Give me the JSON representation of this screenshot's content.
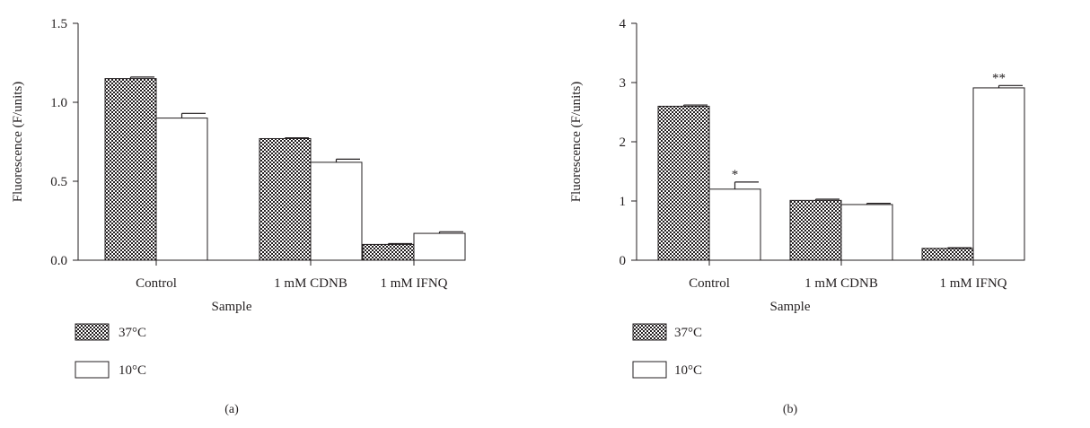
{
  "chart_data": [
    {
      "type": "bar",
      "panel_label": "(a)",
      "xlabel": "Sample",
      "ylabel": "Fluorescence (F/units)",
      "categories": [
        "Control",
        "1 mM CDNB",
        "1 mM IFNQ"
      ],
      "ylim": [
        0,
        1.5
      ],
      "yticks": [
        "0.0",
        "0.5",
        "1.0",
        "1.5"
      ],
      "ytick_values": [
        0,
        0.5,
        1.0,
        1.5
      ],
      "series": [
        {
          "name": "37°C",
          "values": [
            1.15,
            0.77,
            0.1
          ],
          "errors": [
            0.01,
            0.005,
            0.005
          ],
          "fill": "pattern",
          "significance": [
            "",
            "",
            ""
          ]
        },
        {
          "name": "10°C",
          "values": [
            0.9,
            0.62,
            0.17
          ],
          "errors": [
            0.03,
            0.02,
            0.01
          ],
          "fill": "white",
          "significance": [
            "",
            "",
            ""
          ]
        }
      ],
      "legend_position": "bottom-left"
    },
    {
      "type": "bar",
      "panel_label": "(b)",
      "xlabel": "Sample",
      "ylabel": "Fluorescence (F/units)",
      "categories": [
        "Control",
        "1 mM CDNB",
        "1 mM IFNQ"
      ],
      "ylim": [
        0,
        4
      ],
      "yticks": [
        "0",
        "1",
        "2",
        "3",
        "4"
      ],
      "ytick_values": [
        0,
        1,
        2,
        3,
        4
      ],
      "series": [
        {
          "name": "37°C",
          "values": [
            2.6,
            1.01,
            0.2
          ],
          "errors": [
            0.02,
            0.02,
            0.01
          ],
          "fill": "pattern",
          "significance": [
            "",
            "",
            ""
          ]
        },
        {
          "name": "10°C",
          "values": [
            1.2,
            0.94,
            2.91
          ],
          "errors": [
            0.12,
            0.02,
            0.04
          ],
          "fill": "white",
          "significance": [
            "*",
            "",
            "**"
          ]
        }
      ],
      "legend_position": "bottom-left"
    }
  ],
  "colors": {
    "ink": "#231f20",
    "pattern_dark": "#231f20",
    "pattern_light": "#ffffff",
    "bar_white": "#ffffff"
  }
}
